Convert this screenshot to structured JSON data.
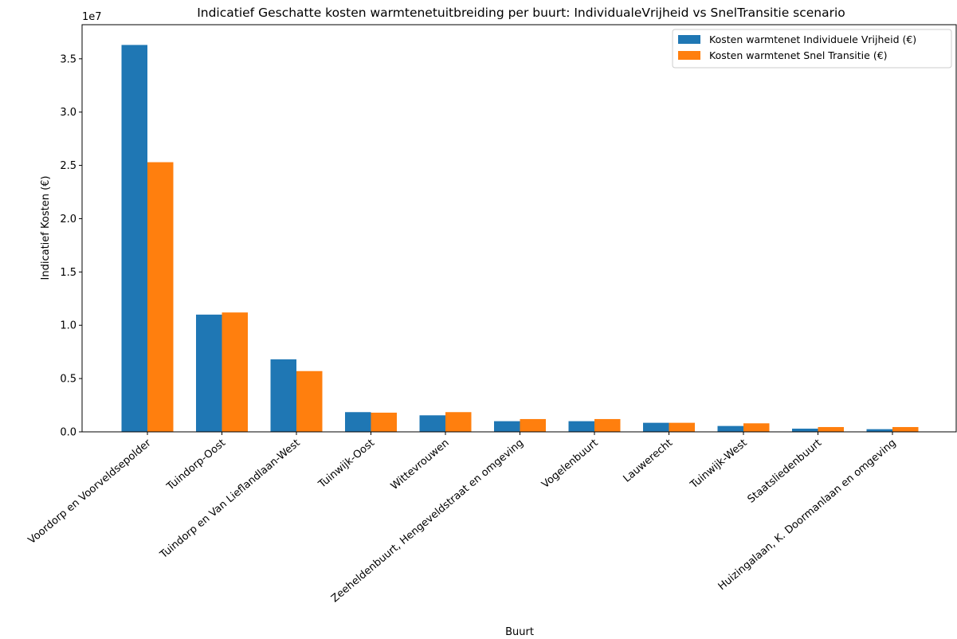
{
  "chart_data": {
    "type": "bar",
    "title": "Indicatief Geschatte kosten warmtenetuitbreiding per buurt: IndividualeVrijheid vs SnelTransitie scenario",
    "xlabel": "Buurt",
    "ylabel": "Indicatief Kosten (€)",
    "offset_label": "1e7",
    "scale": 10000000,
    "ylim": [
      0,
      3.82
    ],
    "yticks": [
      0.0,
      0.5,
      1.0,
      1.5,
      2.0,
      2.5,
      3.0,
      3.5
    ],
    "ytick_labels": [
      "0.0",
      "0.5",
      "1.0",
      "1.5",
      "2.0",
      "2.5",
      "3.0",
      "3.5"
    ],
    "categories": [
      "Voordorp en Voorveldsepolder",
      "Tuindorp-Oost",
      "Tuindorp en Van Lieflandlaan-West",
      "Tuinwijk-Oost",
      "Wittevrouwen",
      "Zeeheldenbuurt, Hengeveldstraat en omgeving",
      "Vogelenbuurt",
      "Lauwerecht",
      "Tuinwijk-West",
      "Staatsliedenbuurt",
      "Huizingalaan, K. Doormanlaan en omgeving"
    ],
    "series": [
      {
        "name": "Kosten warmtenet Individuele Vrijheid (€)",
        "color": "#1f77b4",
        "values": [
          3.63,
          1.1,
          0.68,
          0.185,
          0.155,
          0.1,
          0.1,
          0.085,
          0.055,
          0.03,
          0.025
        ]
      },
      {
        "name": "Kosten warmtenet Snel Transitie (€)",
        "color": "#ff7f0e",
        "values": [
          2.53,
          1.12,
          0.57,
          0.18,
          0.185,
          0.12,
          0.12,
          0.085,
          0.08,
          0.045,
          0.045
        ]
      }
    ],
    "legend_position": "top-right",
    "grid": false
  }
}
